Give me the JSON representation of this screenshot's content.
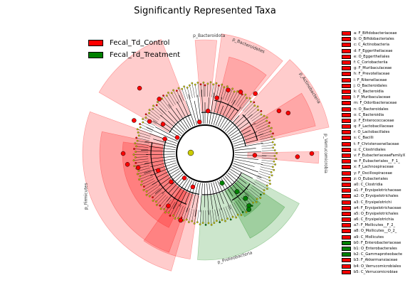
{
  "title": "Significantly Represented Taxa",
  "colors": {
    "control": "#ff0000",
    "treatment": "#008000",
    "control_shade": "#ff0000",
    "treatment_shade": "#008000",
    "neutral_node": "#cccc00"
  },
  "groups": [
    {
      "label": "Fecal_Td_Control",
      "color": "#ff0000"
    },
    {
      "label": "Fecal_Td_Treatment",
      "color": "#008000"
    }
  ],
  "clade_labels": {
    "firmicutes": "p_Firmicutes",
    "bacteroidota_a": "p_Bacteroidota",
    "bacteroidota_b": "p_Bacteroidetes",
    "actinobacteria": "p_Actinobacteria",
    "verrucomicrobia": "p_Verrucomicrobia",
    "proteobacteria": "p_Proteobacteria"
  },
  "taxa_legend": [
    {
      "code": "a",
      "name": "F_Bifidobacteriaceae",
      "group": "control"
    },
    {
      "code": "b",
      "name": "O_Bifidobacteriales",
      "group": "control"
    },
    {
      "code": "c",
      "name": "C_Actinobacteria",
      "group": "control"
    },
    {
      "code": "d",
      "name": "F_Eggerthellaceae",
      "group": "control"
    },
    {
      "code": "e",
      "name": "O_Eggerthellales",
      "group": "control"
    },
    {
      "code": "f",
      "name": "C_Coriobacteriia",
      "group": "control"
    },
    {
      "code": "g",
      "name": "F_Muribaculaceae",
      "group": "control"
    },
    {
      "code": "h",
      "name": "F_Prevotellaceae",
      "group": "control"
    },
    {
      "code": "i",
      "name": "F_Rikenellaceae",
      "group": "control"
    },
    {
      "code": "j",
      "name": "O_Bacteroidales",
      "group": "control"
    },
    {
      "code": "k",
      "name": "C_Bacteroidia",
      "group": "control"
    },
    {
      "code": "l",
      "name": "F_Muribaculaceae",
      "group": "control"
    },
    {
      "code": "m",
      "name": "F_Odoribacteraceae",
      "group": "control"
    },
    {
      "code": "n",
      "name": "O_Bacteroidales",
      "group": "control"
    },
    {
      "code": "o",
      "name": "C_Bacteroidia",
      "group": "control"
    },
    {
      "code": "p",
      "name": "F_Enterococcaceae",
      "group": "control"
    },
    {
      "code": "q",
      "name": "F_Lactobacillaceae",
      "group": "control"
    },
    {
      "code": "r",
      "name": "O_Lactobacillales",
      "group": "control"
    },
    {
      "code": "s",
      "name": "C_Bacilli",
      "group": "control"
    },
    {
      "code": "t",
      "name": "F_Christensenellaceae",
      "group": "control"
    },
    {
      "code": "u",
      "name": "C_Clostridiales",
      "group": "control"
    },
    {
      "code": "v",
      "name": "F_EubacteriaceaeFamilyX",
      "group": "control"
    },
    {
      "code": "w",
      "name": "F_Eubacteriales__F_1_",
      "group": "control"
    },
    {
      "code": "x",
      "name": "F_Lachnospiraceae",
      "group": "control"
    },
    {
      "code": "y",
      "name": "F_Oscillospiraceae",
      "group": "control"
    },
    {
      "code": "z",
      "name": "O_Eubacteriales",
      "group": "control"
    },
    {
      "code": "a0",
      "name": "C_Clostridia",
      "group": "control"
    },
    {
      "code": "a1",
      "name": "F_Erysipelotrichaceae",
      "group": "control"
    },
    {
      "code": "a2",
      "name": "O_Erysipelotrichales",
      "group": "control"
    },
    {
      "code": "a3",
      "name": "C_Erysipelotrichi",
      "group": "control"
    },
    {
      "code": "a4",
      "name": "F_Erysipelotrichaceae",
      "group": "control"
    },
    {
      "code": "a5",
      "name": "O_Erysipelotrichales",
      "group": "control"
    },
    {
      "code": "a6",
      "name": "C_Erysipelotrichia",
      "group": "control"
    },
    {
      "code": "a7",
      "name": "F_Mollicutes__F_2_",
      "group": "control"
    },
    {
      "code": "a8",
      "name": "O_Mollicutes__O_2_",
      "group": "control"
    },
    {
      "code": "a9",
      "name": "C_Mollicutes",
      "group": "control"
    },
    {
      "code": "b0",
      "name": "F_Enterobacteriaceae",
      "group": "treatment"
    },
    {
      "code": "b1",
      "name": "O_Enterobacterales",
      "group": "treatment"
    },
    {
      "code": "b2",
      "name": "C_Gammaproteobacte",
      "group": "treatment"
    },
    {
      "code": "b3",
      "name": "F_Akkermansiaceae",
      "group": "control"
    },
    {
      "code": "b4",
      "name": "O_Verrucomicrobiales",
      "group": "control"
    },
    {
      "code": "b5",
      "name": "C_Verrucomicrobiae",
      "group": "control"
    }
  ]
}
